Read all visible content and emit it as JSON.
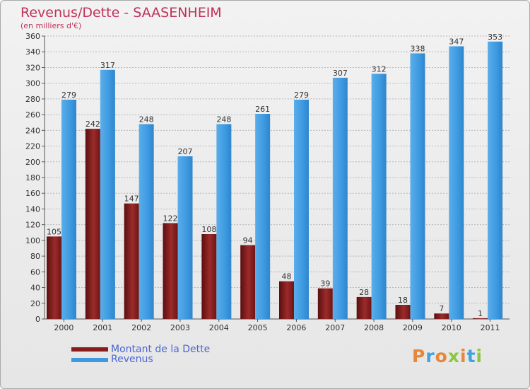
{
  "chart_data": {
    "type": "bar",
    "title": "Revenus/Dette - SAASENHEIM",
    "subtitle": "(en milliers d'€)",
    "categories": [
      "2000",
      "2001",
      "2002",
      "2003",
      "2004",
      "2005",
      "2006",
      "2007",
      "2008",
      "2009",
      "2010",
      "2011"
    ],
    "series": [
      {
        "name": "Montant de la Dette",
        "values": [
          105,
          242,
          147,
          122,
          108,
          94,
          48,
          39,
          28,
          18,
          7,
          1
        ],
        "color": "#8b1c1c"
      },
      {
        "name": "Revenus",
        "values": [
          279,
          317,
          248,
          207,
          248,
          261,
          279,
          307,
          312,
          338,
          347,
          353
        ],
        "color": "#3d99e0"
      }
    ],
    "ylim": [
      0,
      360
    ],
    "ytick_step": 20,
    "grid": true,
    "legend_position": "bottom-left"
  },
  "logo": {
    "text": "Proxiti",
    "colors": [
      "#e8873a",
      "#3fa3e0",
      "#e8873a",
      "#8cc63f",
      "#e8873a",
      "#3fa3e0",
      "#8cc63f"
    ]
  }
}
